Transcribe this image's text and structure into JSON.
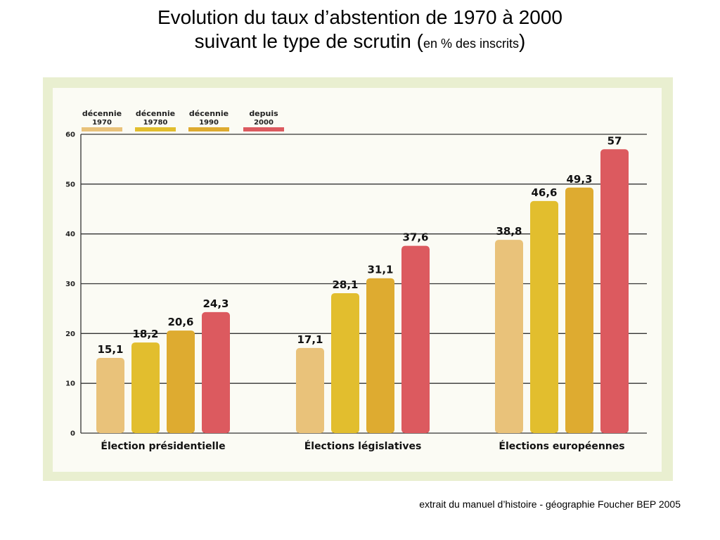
{
  "title": {
    "main_line1": "Evolution du taux d’abstention de 1970 à 2000",
    "main_line2": "suivant le type de scrutin (",
    "unit": "en % des inscrits",
    "close": ")"
  },
  "source": "extrait du manuel d’histoire - géographie Foucher BEP 2005",
  "chart_data": {
    "type": "bar",
    "title": "",
    "xlabel": "",
    "ylabel": "",
    "ylim": [
      0,
      60
    ],
    "yticks": [
      "0",
      "10",
      "20",
      "30",
      "40",
      "50",
      "60"
    ],
    "grid": true,
    "legend_position": "top-left",
    "categories": [
      "Élection présidentielle",
      "Élections législatives",
      "Élections européennes"
    ],
    "series": [
      {
        "name_line1": "décennie",
        "name_line2": "1970",
        "color": "#e9c27a",
        "values": [
          15.1,
          17.1,
          38.8
        ],
        "labels": [
          "15,1",
          "17,1",
          "38,8"
        ]
      },
      {
        "name_line1": "décennie",
        "name_line2": "19780",
        "color": "#e2be2e",
        "values": [
          18.2,
          28.1,
          46.6
        ],
        "labels": [
          "18,2",
          "28,1",
          "46,6"
        ]
      },
      {
        "name_line1": "décennie",
        "name_line2": "1990",
        "color": "#deab30",
        "values": [
          20.6,
          31.1,
          49.3
        ],
        "labels": [
          "20,6",
          "31,1",
          "49,3"
        ]
      },
      {
        "name_line1": "depuis",
        "name_line2": "2000",
        "color": "#dc5a5f",
        "values": [
          24.3,
          37.6,
          57
        ],
        "labels": [
          "24,3",
          "37,6",
          "57"
        ]
      }
    ]
  }
}
